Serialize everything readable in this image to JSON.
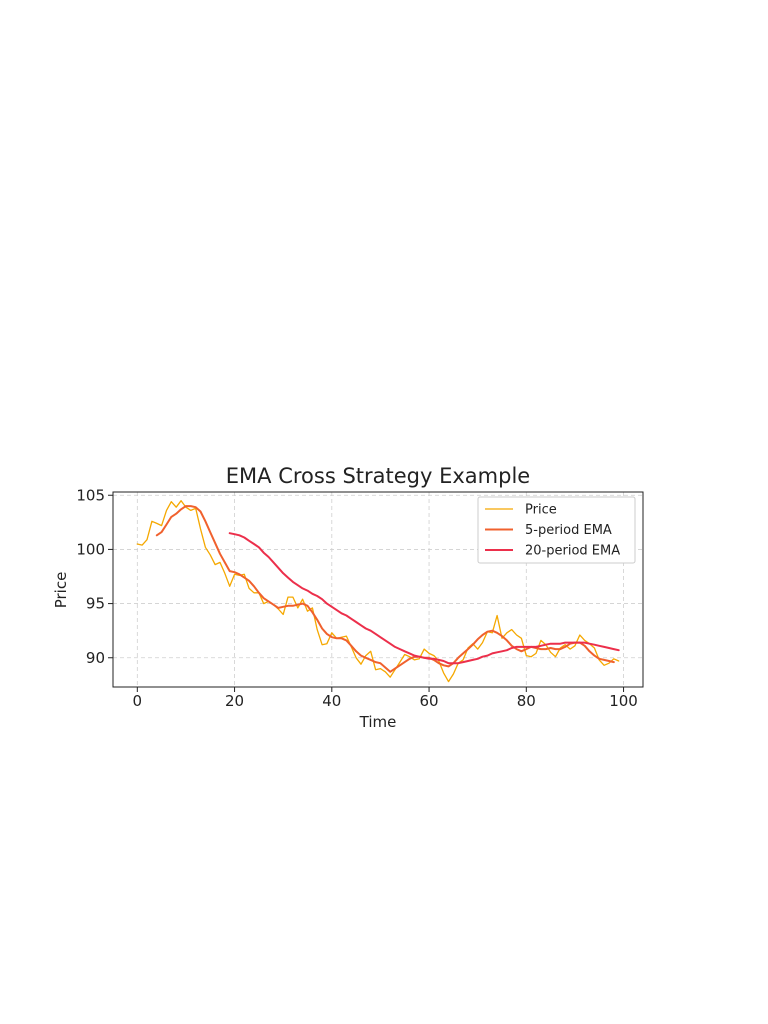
{
  "chart_data": {
    "type": "line",
    "title": "EMA Cross Strategy Example",
    "xlabel": "Time",
    "ylabel": "Price",
    "xlim": [
      -5,
      104
    ],
    "ylim": [
      87.3,
      105.3
    ],
    "xticks": [
      0,
      20,
      40,
      60,
      80,
      100
    ],
    "yticks": [
      90,
      95,
      100,
      105
    ],
    "grid": true,
    "legend_position": "top-right",
    "series": [
      {
        "name": "Price",
        "color": "#f5a800",
        "x_start": 0,
        "values": [
          100.5,
          100.4,
          100.9,
          102.6,
          102.4,
          102.2,
          103.6,
          104.4,
          103.9,
          104.5,
          103.9,
          103.6,
          103.8,
          101.9,
          100.2,
          99.5,
          98.6,
          98.8,
          97.8,
          96.6,
          97.7,
          97.6,
          97.7,
          96.4,
          96.0,
          96.0,
          95.0,
          95.2,
          94.9,
          94.5,
          94.0,
          95.6,
          95.6,
          94.6,
          95.4,
          94.3,
          94.6,
          92.6,
          91.2,
          91.3,
          92.3,
          91.8,
          91.9,
          92.0,
          91.0,
          90.0,
          89.4,
          90.2,
          90.6,
          88.9,
          89.0,
          88.7,
          88.2,
          88.9,
          89.6,
          90.3,
          90.1,
          89.8,
          89.9,
          90.8,
          90.4,
          90.2,
          89.7,
          88.6,
          87.8,
          88.5,
          89.5,
          89.8,
          90.9,
          91.3,
          90.8,
          91.4,
          92.4,
          92.3,
          93.9,
          91.8,
          92.3,
          92.6,
          92.1,
          91.8,
          90.2,
          90.1,
          90.4,
          91.6,
          91.2,
          90.5,
          90.1,
          90.9,
          91.2,
          90.8,
          91.1,
          92.1,
          91.6,
          91.3,
          90.9,
          89.8,
          89.3,
          89.5,
          89.9,
          89.7
        ]
      },
      {
        "name": "5-period EMA",
        "color": "#f0612e",
        "x_start": 4,
        "values": [
          101.3,
          101.6,
          102.3,
          103.0,
          103.3,
          103.7,
          104.0,
          104.0,
          103.9,
          103.5,
          102.6,
          101.6,
          100.6,
          99.6,
          98.8,
          98.0,
          97.9,
          97.7,
          97.4,
          97.1,
          96.6,
          96.0,
          95.5,
          95.2,
          94.9,
          94.6,
          94.7,
          94.8,
          94.8,
          94.9,
          95.0,
          94.8,
          94.2,
          93.5,
          92.7,
          92.2,
          91.9,
          91.8,
          91.8,
          91.6,
          91.1,
          90.6,
          90.2,
          90.0,
          89.8,
          89.6,
          89.5,
          89.1,
          88.7,
          89.0,
          89.3,
          89.6,
          89.9,
          90.1,
          90.1,
          90.0,
          90.0,
          89.8,
          89.5,
          89.3,
          89.2,
          89.5,
          90.0,
          90.4,
          90.8,
          91.2,
          91.7,
          92.1,
          92.4,
          92.5,
          92.3,
          92.0,
          91.6,
          91.1,
          90.8,
          90.6,
          90.8,
          91.0,
          90.9,
          90.8,
          90.8,
          90.9,
          90.8,
          90.8,
          91.0,
          91.3,
          91.4,
          91.4,
          91.1,
          90.6,
          90.2,
          89.9,
          89.8,
          89.7,
          89.6
        ]
      },
      {
        "name": "20-period EMA",
        "color": "#ec2f4b",
        "x_start": 19,
        "values": [
          101.5,
          101.4,
          101.3,
          101.1,
          100.8,
          100.5,
          100.2,
          99.7,
          99.3,
          98.8,
          98.3,
          97.8,
          97.4,
          97.0,
          96.7,
          96.4,
          96.2,
          95.9,
          95.7,
          95.4,
          95.0,
          94.7,
          94.4,
          94.1,
          93.9,
          93.6,
          93.3,
          93.0,
          92.7,
          92.5,
          92.2,
          91.9,
          91.6,
          91.3,
          91.0,
          90.8,
          90.6,
          90.4,
          90.2,
          90.1,
          90.0,
          89.9,
          89.9,
          89.8,
          89.7,
          89.5,
          89.5,
          89.5,
          89.6,
          89.7,
          89.8,
          89.9,
          90.1,
          90.2,
          90.4,
          90.5,
          90.6,
          90.7,
          90.9,
          91.0,
          91.0,
          91.0,
          91.0,
          91.0,
          91.1,
          91.2,
          91.3,
          91.3,
          91.3,
          91.4,
          91.4,
          91.4,
          91.4,
          91.4,
          91.3,
          91.2,
          91.1,
          91.0,
          90.9,
          90.8,
          90.7
        ]
      }
    ]
  }
}
